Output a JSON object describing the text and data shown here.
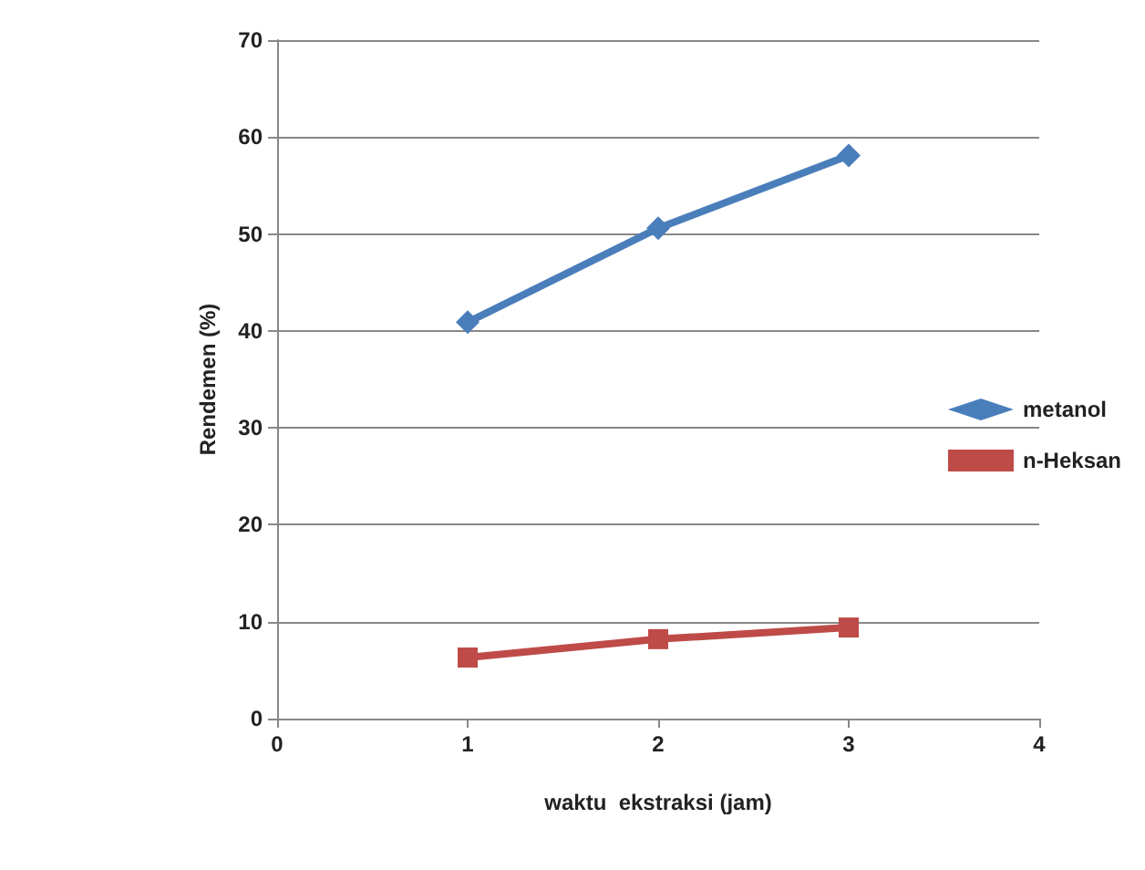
{
  "chart_data": {
    "type": "line",
    "xlabel": "waktu  ekstraksi (jam)",
    "ylabel": "Rendemen (%)",
    "x": [
      1,
      2,
      3
    ],
    "series": [
      {
        "name": "metanol",
        "color": "#4a7ebb",
        "marker": "diamond",
        "values": [
          40.9,
          50.6,
          58.1
        ]
      },
      {
        "name": "n-Heksan",
        "color": "#be4b48",
        "marker": "square",
        "values": [
          6.3,
          8.2,
          9.4
        ]
      }
    ],
    "xlim": [
      0,
      4
    ],
    "xticks": [
      0,
      1,
      2,
      3,
      4
    ],
    "ylim": [
      0,
      70
    ],
    "yticks": [
      0,
      10,
      20,
      30,
      40,
      50,
      60,
      70
    ],
    "grid": "y",
    "legend": "right",
    "line_style": "solid"
  }
}
